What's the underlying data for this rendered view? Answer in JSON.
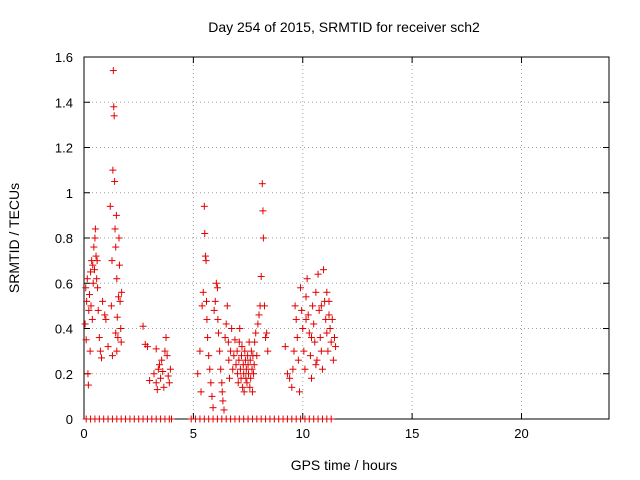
{
  "chart_data": {
    "type": "scatter",
    "title": "Day 254 of 2015, SRMTID for receiver sch2",
    "xlabel": "GPS time / hours",
    "ylabel": "SRMTID / TECUs",
    "xlim": [
      0,
      24
    ],
    "ylim": [
      0,
      1.6
    ],
    "xticks": [
      0,
      5,
      10,
      15,
      20
    ],
    "yticks": [
      0,
      0.2,
      0.4,
      0.6,
      0.8,
      1,
      1.2,
      1.4,
      1.6
    ],
    "xtick_labels": [
      "0",
      "5",
      "10",
      "15",
      "20"
    ],
    "ytick_labels": [
      "0",
      "0.2",
      "0.4",
      "0.6",
      "0.8",
      "1",
      "1.2",
      "1.4",
      "1.6"
    ],
    "grid": true,
    "marker": "+",
    "color": "#e00000",
    "series": [
      {
        "name": "SRMTID",
        "points": [
          [
            0.05,
            0.42
          ],
          [
            0.08,
            0.58
          ],
          [
            0.1,
            0.35
          ],
          [
            0.12,
            0.52
          ],
          [
            0.15,
            0.62
          ],
          [
            0.18,
            0.2
          ],
          [
            0.2,
            0.15
          ],
          [
            0.22,
            0.48
          ],
          [
            0.25,
            0.55
          ],
          [
            0.28,
            0.3
          ],
          [
            0.3,
            0.65
          ],
          [
            0.32,
            0.5
          ],
          [
            0.35,
            0.7
          ],
          [
            0.38,
            0.44
          ],
          [
            0.4,
            0.68
          ],
          [
            0.42,
            0.6
          ],
          [
            0.45,
            0.76
          ],
          [
            0.48,
            0.66
          ],
          [
            0.5,
            0.8
          ],
          [
            0.52,
            0.84
          ],
          [
            0.55,
            0.72
          ],
          [
            0.58,
            0.62
          ],
          [
            0.6,
            0.7
          ],
          [
            0.62,
            0.58
          ],
          [
            0.65,
            0.48
          ],
          [
            0.7,
            0.36
          ],
          [
            0.75,
            0.3
          ],
          [
            0.8,
            0.27
          ],
          [
            0.85,
            0.52
          ],
          [
            0.95,
            0.46
          ],
          [
            1.0,
            0.44
          ],
          [
            1.1,
            0.32
          ],
          [
            1.2,
            0.94
          ],
          [
            1.25,
            0.5
          ],
          [
            1.28,
            0.7
          ],
          [
            1.3,
            0.28
          ],
          [
            1.32,
            1.1
          ],
          [
            1.34,
            1.54
          ],
          [
            1.36,
            1.38
          ],
          [
            1.38,
            1.34
          ],
          [
            1.4,
            1.05
          ],
          [
            1.42,
            0.84
          ],
          [
            1.45,
            0.76
          ],
          [
            1.48,
            0.9
          ],
          [
            1.5,
            0.62
          ],
          [
            1.52,
            0.45
          ],
          [
            1.55,
            0.36
          ],
          [
            1.58,
            0.54
          ],
          [
            1.6,
            0.8
          ],
          [
            1.62,
            0.68
          ],
          [
            1.65,
            0.52
          ],
          [
            1.68,
            0.4
          ],
          [
            1.7,
            0.34
          ],
          [
            1.72,
            0.56
          ],
          [
            1.5,
            0.3
          ],
          [
            1.45,
            0.38
          ],
          [
            2.7,
            0.41
          ],
          [
            2.8,
            0.33
          ],
          [
            2.9,
            0.32
          ],
          [
            3.0,
            0.17
          ],
          [
            3.2,
            0.2
          ],
          [
            3.3,
            0.16
          ],
          [
            3.35,
            0.13
          ],
          [
            3.4,
            0.22
          ],
          [
            3.45,
            0.24
          ],
          [
            3.5,
            0.18
          ],
          [
            3.55,
            0.26
          ],
          [
            3.6,
            0.21
          ],
          [
            3.7,
            0.3
          ],
          [
            3.75,
            0.36
          ],
          [
            3.8,
            0.28
          ],
          [
            3.85,
            0.19
          ],
          [
            3.9,
            0.16
          ],
          [
            3.95,
            0.22
          ],
          [
            3.65,
            0.14
          ],
          [
            3.3,
            0.31
          ],
          [
            5.2,
            0.2
          ],
          [
            5.3,
            0.3
          ],
          [
            5.35,
            0.12
          ],
          [
            5.4,
            0.5
          ],
          [
            5.45,
            0.56
          ],
          [
            5.5,
            0.94
          ],
          [
            5.52,
            0.82
          ],
          [
            5.55,
            0.72
          ],
          [
            5.58,
            0.7
          ],
          [
            5.6,
            0.52
          ],
          [
            5.62,
            0.44
          ],
          [
            5.65,
            0.36
          ],
          [
            5.7,
            0.28
          ],
          [
            5.75,
            0.22
          ],
          [
            5.8,
            0.16
          ],
          [
            5.85,
            0.1
          ],
          [
            5.9,
            0.05
          ],
          [
            5.95,
            0.48
          ],
          [
            6.0,
            0.52
          ],
          [
            6.05,
            0.6
          ],
          [
            6.1,
            0.58
          ],
          [
            6.12,
            0.44
          ],
          [
            6.15,
            0.38
          ],
          [
            6.2,
            0.3
          ],
          [
            6.25,
            0.22
          ],
          [
            6.3,
            0.16
          ],
          [
            6.32,
            0.12
          ],
          [
            6.35,
            0.08
          ],
          [
            6.4,
            0.04
          ],
          [
            6.45,
            0.36
          ],
          [
            6.5,
            0.42
          ],
          [
            6.55,
            0.5
          ],
          [
            6.6,
            0.34
          ],
          [
            6.62,
            0.26
          ],
          [
            6.65,
            0.18
          ],
          [
            6.7,
            0.3
          ],
          [
            6.75,
            0.4
          ],
          [
            6.8,
            0.22
          ],
          [
            6.85,
            0.28
          ],
          [
            6.9,
            0.35
          ],
          [
            6.95,
            0.24
          ],
          [
            7.0,
            0.3
          ],
          [
            7.02,
            0.2
          ],
          [
            7.05,
            0.16
          ],
          [
            7.08,
            0.26
          ],
          [
            7.1,
            0.34
          ],
          [
            7.12,
            0.4
          ],
          [
            7.15,
            0.22
          ],
          [
            7.18,
            0.18
          ],
          [
            7.2,
            0.28
          ],
          [
            7.22,
            0.32
          ],
          [
            7.25,
            0.14
          ],
          [
            7.28,
            0.24
          ],
          [
            7.3,
            0.2
          ],
          [
            7.32,
            0.12
          ],
          [
            7.35,
            0.3
          ],
          [
            7.38,
            0.26
          ],
          [
            7.4,
            0.18
          ],
          [
            7.42,
            0.22
          ],
          [
            7.45,
            0.16
          ],
          [
            7.48,
            0.28
          ],
          [
            7.5,
            0.24
          ],
          [
            7.52,
            0.2
          ],
          [
            7.55,
            0.34
          ],
          [
            7.58,
            0.14
          ],
          [
            7.6,
            0.26
          ],
          [
            7.62,
            0.18
          ],
          [
            7.65,
            0.3
          ],
          [
            7.68,
            0.22
          ],
          [
            7.7,
            0.12
          ],
          [
            7.72,
            0.28
          ],
          [
            7.75,
            0.2
          ],
          [
            7.78,
            0.24
          ],
          [
            7.8,
            0.34
          ],
          [
            7.85,
            0.38
          ],
          [
            7.9,
            0.28
          ],
          [
            7.95,
            0.42
          ],
          [
            8.0,
            0.46
          ],
          [
            8.05,
            0.5
          ],
          [
            8.1,
            0.63
          ],
          [
            8.15,
            1.04
          ],
          [
            8.18,
            0.92
          ],
          [
            8.2,
            0.8
          ],
          [
            8.25,
            0.5
          ],
          [
            8.3,
            0.36
          ],
          [
            8.35,
            0.38
          ],
          [
            8.4,
            0.3
          ],
          [
            9.2,
            0.32
          ],
          [
            9.3,
            0.2
          ],
          [
            9.4,
            0.18
          ],
          [
            9.5,
            0.14
          ],
          [
            9.55,
            0.22
          ],
          [
            9.6,
            0.3
          ],
          [
            9.65,
            0.5
          ],
          [
            9.7,
            0.44
          ],
          [
            9.75,
            0.36
          ],
          [
            9.8,
            0.26
          ],
          [
            9.85,
            0.12
          ],
          [
            9.9,
            0.58
          ],
          [
            9.95,
            0.48
          ],
          [
            10.0,
            0.4
          ],
          [
            10.05,
            0.3
          ],
          [
            10.1,
            0.22
          ],
          [
            10.15,
            0.54
          ],
          [
            10.2,
            0.62
          ],
          [
            10.25,
            0.46
          ],
          [
            10.3,
            0.38
          ],
          [
            10.35,
            0.28
          ],
          [
            10.4,
            0.18
          ],
          [
            10.45,
            0.5
          ],
          [
            10.5,
            0.42
          ],
          [
            10.55,
            0.34
          ],
          [
            10.6,
            0.56
          ],
          [
            10.65,
            0.26
          ],
          [
            10.7,
            0.64
          ],
          [
            10.75,
            0.48
          ],
          [
            10.8,
            0.36
          ],
          [
            10.85,
            0.3
          ],
          [
            10.9,
            0.22
          ],
          [
            10.95,
            0.66
          ],
          [
            11.0,
            0.52
          ],
          [
            11.05,
            0.44
          ],
          [
            11.1,
            0.38
          ],
          [
            11.15,
            0.3
          ],
          [
            11.2,
            0.52
          ],
          [
            11.25,
            0.4
          ],
          [
            11.3,
            0.34
          ],
          [
            11.35,
            0.44
          ],
          [
            11.4,
            0.26
          ],
          [
            11.45,
            0.36
          ],
          [
            11.5,
            0.32
          ],
          [
            11.2,
            0.46
          ],
          [
            11.1,
            0.56
          ],
          [
            10.85,
            0.5
          ],
          [
            10.6,
            0.24
          ],
          [
            10.4,
            0.36
          ],
          [
            10.15,
            0.44
          ],
          [
            0.1,
            0
          ],
          [
            0.3,
            0
          ],
          [
            0.5,
            0
          ],
          [
            0.7,
            0
          ],
          [
            0.9,
            0
          ],
          [
            1.1,
            0
          ],
          [
            1.3,
            0
          ],
          [
            1.5,
            0
          ],
          [
            1.7,
            0
          ],
          [
            1.9,
            0
          ],
          [
            2.1,
            0
          ],
          [
            2.3,
            0
          ],
          [
            2.5,
            0
          ],
          [
            2.7,
            0
          ],
          [
            2.9,
            0
          ],
          [
            3.1,
            0
          ],
          [
            3.3,
            0
          ],
          [
            3.5,
            0
          ],
          [
            3.7,
            0
          ],
          [
            3.9,
            0
          ],
          [
            4.0,
            0
          ],
          [
            4.9,
            0
          ],
          [
            5.1,
            0
          ],
          [
            5.3,
            0
          ],
          [
            5.5,
            0
          ],
          [
            5.7,
            0
          ],
          [
            5.9,
            0
          ],
          [
            6.1,
            0
          ],
          [
            6.3,
            0
          ],
          [
            6.5,
            0
          ],
          [
            6.7,
            0
          ],
          [
            6.9,
            0
          ],
          [
            7.1,
            0
          ],
          [
            7.3,
            0
          ],
          [
            7.5,
            0
          ],
          [
            7.7,
            0
          ],
          [
            7.9,
            0
          ],
          [
            8.1,
            0
          ],
          [
            8.3,
            0
          ],
          [
            8.5,
            0
          ],
          [
            8.7,
            0
          ],
          [
            8.9,
            0
          ],
          [
            9.1,
            0
          ],
          [
            9.3,
            0
          ],
          [
            9.5,
            0
          ],
          [
            9.7,
            0
          ],
          [
            9.9,
            0
          ],
          [
            10.1,
            0
          ],
          [
            10.3,
            0
          ],
          [
            10.5,
            0
          ],
          [
            10.7,
            0
          ],
          [
            10.9,
            0
          ],
          [
            11.1,
            0
          ],
          [
            11.3,
            0
          ]
        ]
      }
    ]
  }
}
